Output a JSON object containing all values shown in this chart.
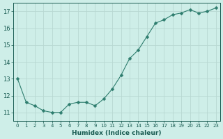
{
  "x": [
    0,
    1,
    2,
    3,
    4,
    5,
    6,
    7,
    8,
    9,
    10,
    11,
    12,
    13,
    14,
    15,
    16,
    17,
    18,
    19,
    20,
    21,
    22,
    23
  ],
  "y": [
    13.0,
    11.6,
    11.4,
    11.1,
    11.0,
    11.0,
    11.5,
    11.6,
    11.6,
    11.4,
    11.8,
    12.4,
    13.2,
    14.2,
    14.7,
    15.5,
    16.3,
    16.5,
    16.8,
    16.9,
    17.1,
    16.9,
    17.0,
    17.2
  ],
  "xlabel": "Humidex (Indice chaleur)",
  "xlim": [
    -0.5,
    23.5
  ],
  "ylim": [
    10.5,
    17.5
  ],
  "yticks": [
    11,
    12,
    13,
    14,
    15,
    16,
    17
  ],
  "xticks": [
    0,
    1,
    2,
    3,
    4,
    5,
    6,
    7,
    8,
    9,
    10,
    11,
    12,
    13,
    14,
    15,
    16,
    17,
    18,
    19,
    20,
    21,
    22,
    23
  ],
  "line_color": "#2e7d6e",
  "marker": "D",
  "marker_size": 2.5,
  "bg_color": "#ceeee8",
  "grid_color": "#b8d8d2",
  "label_color": "#1a5c52",
  "tick_color": "#1a5c52",
  "spine_color": "#1a5c52"
}
